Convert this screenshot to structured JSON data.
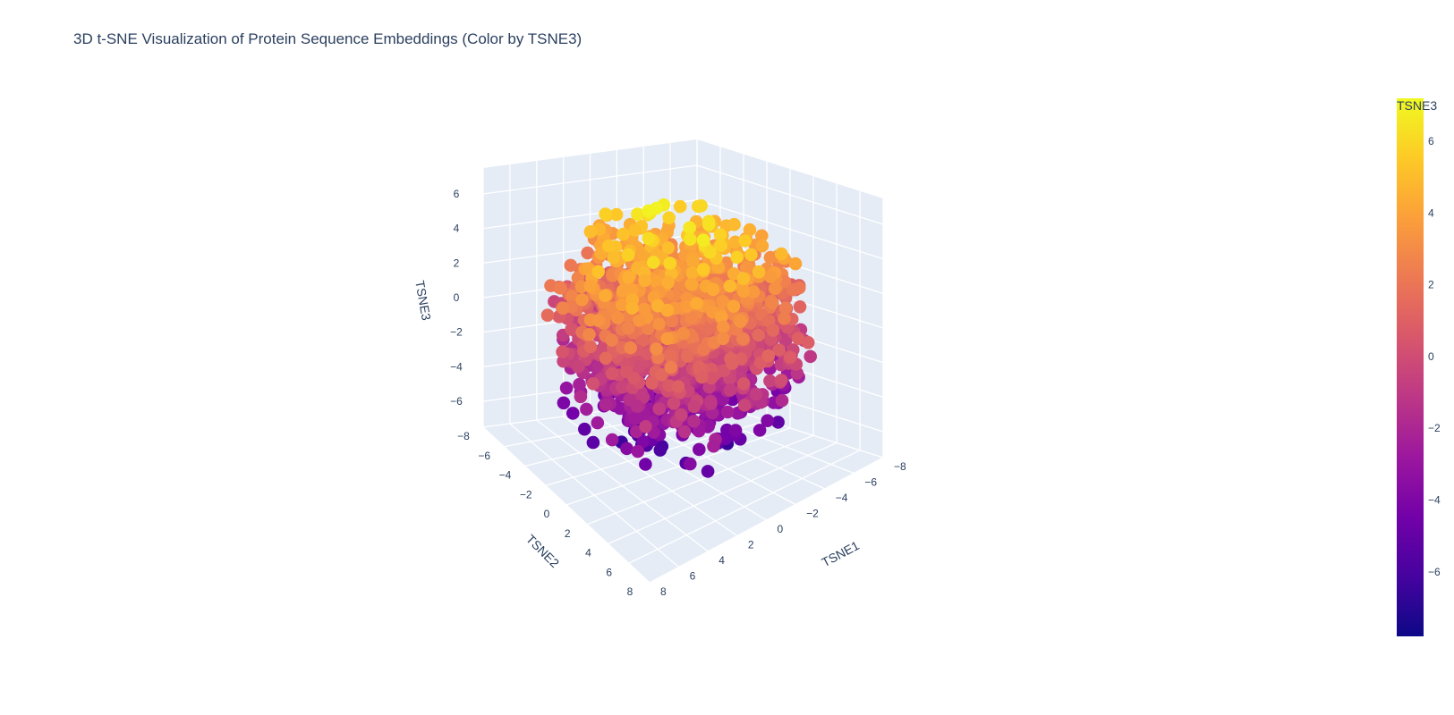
{
  "chart_data": {
    "type": "scatter",
    "title": "3D t-SNE Visualization of Protein Sequence Embeddings (Color by TSNE3)",
    "axes": {
      "x": {
        "label": "TSNE1",
        "range": [
          -8,
          8
        ],
        "ticks": [
          "−8",
          "−6",
          "−4",
          "−2",
          "0",
          "2",
          "4",
          "6",
          "8"
        ]
      },
      "y": {
        "label": "TSNE2",
        "range": [
          -8,
          8
        ],
        "ticks": [
          "−8",
          "−6",
          "−4",
          "−2",
          "0",
          "2",
          "4",
          "6",
          "8"
        ]
      },
      "z": {
        "label": "TSNE3",
        "range": [
          -7.5,
          7.5
        ],
        "ticks": [
          "−6",
          "−4",
          "−2",
          "0",
          "2",
          "4",
          "6"
        ]
      }
    },
    "colorbar": {
      "title": "TSNE3",
      "range": [
        -7.8,
        7.2
      ],
      "ticks": [
        "6",
        "4",
        "2",
        "0",
        "−2",
        "−4",
        "−6"
      ],
      "colorscale": [
        "#0d0887",
        "#46039f",
        "#7201a8",
        "#9c179e",
        "#bd3786",
        "#d8576b",
        "#ed7953",
        "#fb9f3a",
        "#fdca26",
        "#f0f921"
      ]
    },
    "colorscale_name": "Plasma",
    "marker_color_variable": "TSNE3",
    "grid": true,
    "background": "#e5ecf6",
    "approx_point_count": 2000
  }
}
